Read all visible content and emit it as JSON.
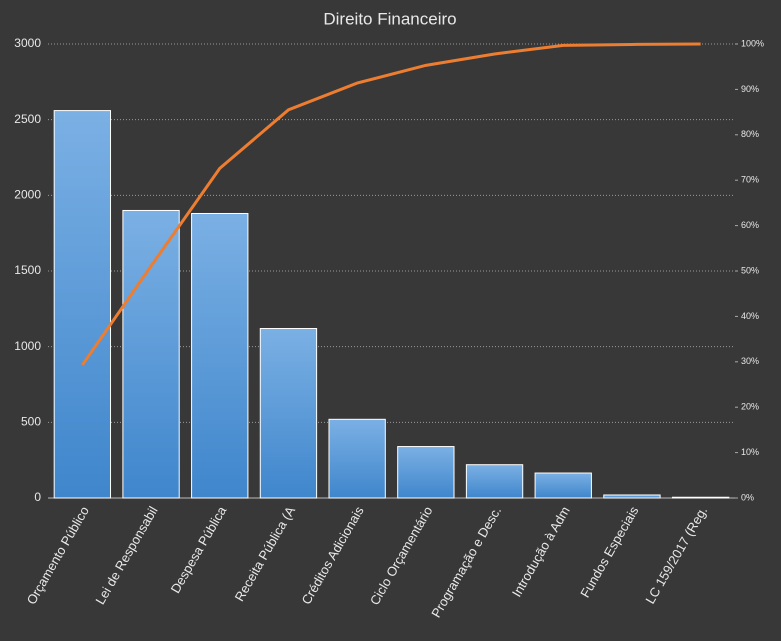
{
  "chart_data": {
    "type": "bar",
    "title": "Direito Financeiro",
    "categories": [
      "Orçamento Público",
      "Lei de Responsabil",
      "Despesa Pública",
      "Receita Pública (A",
      "Créditos Adicionais",
      "Ciclo Orçamentário",
      "Programação e Desc.",
      "Introdução à Adm",
      "Fundos Especiais",
      "LC 159/2017 (Reg."
    ],
    "series": [
      {
        "type": "bar",
        "color": "#5b9bd5",
        "values": [
          2560,
          1900,
          1880,
          1120,
          520,
          340,
          220,
          165,
          20,
          5
        ]
      },
      {
        "type": "line",
        "axis": "y2",
        "color": "#ed7d31",
        "values": [
          29.3,
          51.1,
          72.6,
          85.5,
          91.4,
          95.3,
          97.8,
          99.7,
          99.9,
          100
        ]
      }
    ],
    "ylim": [
      0,
      3000
    ],
    "yticks": [
      0,
      500,
      1000,
      1500,
      2000,
      2500,
      3000
    ],
    "y2lim": [
      0,
      100
    ],
    "y2ticks": [
      {
        "value": 0,
        "label": "0%"
      },
      {
        "value": 10,
        "label": "10%"
      },
      {
        "value": 20,
        "label": "20%"
      },
      {
        "value": 30,
        "label": "30%"
      },
      {
        "value": 40,
        "label": "40%"
      },
      {
        "value": 50,
        "label": "50%"
      },
      {
        "value": 60,
        "label": "60%"
      },
      {
        "value": 70,
        "label": "70%"
      },
      {
        "value": 80,
        "label": "80%"
      },
      {
        "value": 90,
        "label": "90%"
      },
      {
        "value": 100,
        "label": "100%"
      }
    ],
    "grid": true
  }
}
